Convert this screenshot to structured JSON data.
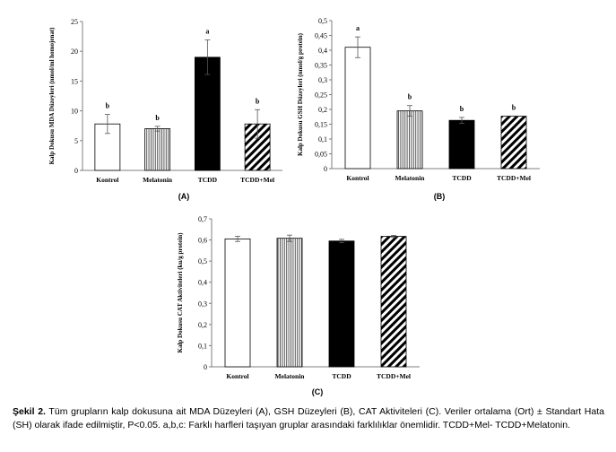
{
  "chart_data": [
    {
      "type": "bar",
      "panel_label": "(A)",
      "ylabel": "Kalp Dokusu MDA Düzeyleri (nmol/ml homojenat)",
      "ylim": [
        0,
        25
      ],
      "yticks": [
        "0",
        "5",
        "10",
        "15",
        "20",
        "25"
      ],
      "categories": [
        "Kontrol",
        "Melatonin",
        "TCDD",
        "TCDD+Mel"
      ],
      "values": [
        7.8,
        7.0,
        19.0,
        7.8
      ],
      "errors": [
        1.6,
        0.4,
        2.9,
        2.4
      ],
      "significance": [
        "b",
        "b",
        "a",
        "b"
      ]
    },
    {
      "type": "bar",
      "panel_label": "(B)",
      "ylabel": "Kalp Dokusu GSH Düzeyleri (nmol/g protein)",
      "ylim": [
        0,
        0.5
      ],
      "yticks": [
        "0",
        "0,05",
        "0,1",
        "0,15",
        "0,2",
        "0,25",
        "0,3",
        "0,35",
        "0,4",
        "0,45",
        "0,5"
      ],
      "categories": [
        "Kontrol",
        "Melatonin",
        "TCDD",
        "TCDD+Mel"
      ],
      "values": [
        0.41,
        0.195,
        0.163,
        0.177
      ],
      "errors": [
        0.035,
        0.018,
        0.01,
        0.0
      ],
      "significance": [
        "a",
        "b",
        "b",
        "b"
      ]
    },
    {
      "type": "bar",
      "panel_label": "(C)",
      "ylabel": "Kalp Dokusu CAT Aktiviteleri (ku/g protein)",
      "ylim": [
        0,
        0.7
      ],
      "yticks": [
        "0",
        "0,1",
        "0,2",
        "0,3",
        "0,4",
        "0,5",
        "0,6",
        "0,7"
      ],
      "categories": [
        "Kontrol",
        "Melatonin",
        "TCDD",
        "TCDD+Mel"
      ],
      "values": [
        0.605,
        0.608,
        0.595,
        0.617
      ],
      "errors": [
        0.012,
        0.015,
        0.008,
        0.005
      ],
      "significance": [
        "",
        "",
        "",
        ""
      ]
    }
  ],
  "bar_styles": [
    "white",
    "vertical-stripes",
    "black",
    "diagonal-stripes"
  ],
  "colors": {
    "axis": "#7f7f7f",
    "black": "#000000",
    "white": "#ffffff"
  },
  "caption": {
    "label": "Şekil 2.",
    "text": " Tüm grupların kalp dokusuna ait MDA Düzeyleri (A), GSH Düzeyleri (B), CAT Aktiviteleri (C). Veriler ortalama (Ort) ± Standart Hata (SH) olarak ifade edilmiştir, P<0.05. a,b,c: Farklı harfleri taşıyan gruplar arasındaki farklılıklar önemlidir. TCDD+Mel- TCDD+Melatonin."
  }
}
